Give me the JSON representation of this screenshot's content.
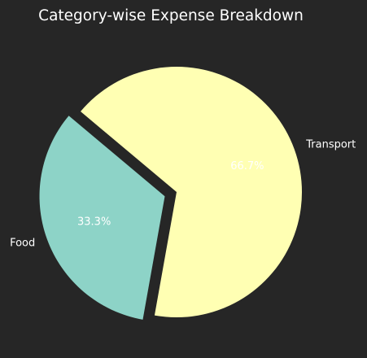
{
  "chart_data": {
    "type": "pie",
    "title": "Category-wise Expense Breakdown",
    "categories": [
      "Food",
      "Transport"
    ],
    "values": [
      33.3,
      66.7
    ],
    "value_labels": [
      "33.3%",
      "66.7%"
    ],
    "colors": [
      "#8dd3c7",
      "#ffffb3"
    ],
    "explode": [
      true,
      false
    ],
    "background": "#262626",
    "text_color": "#ffffff",
    "legend": "none"
  }
}
